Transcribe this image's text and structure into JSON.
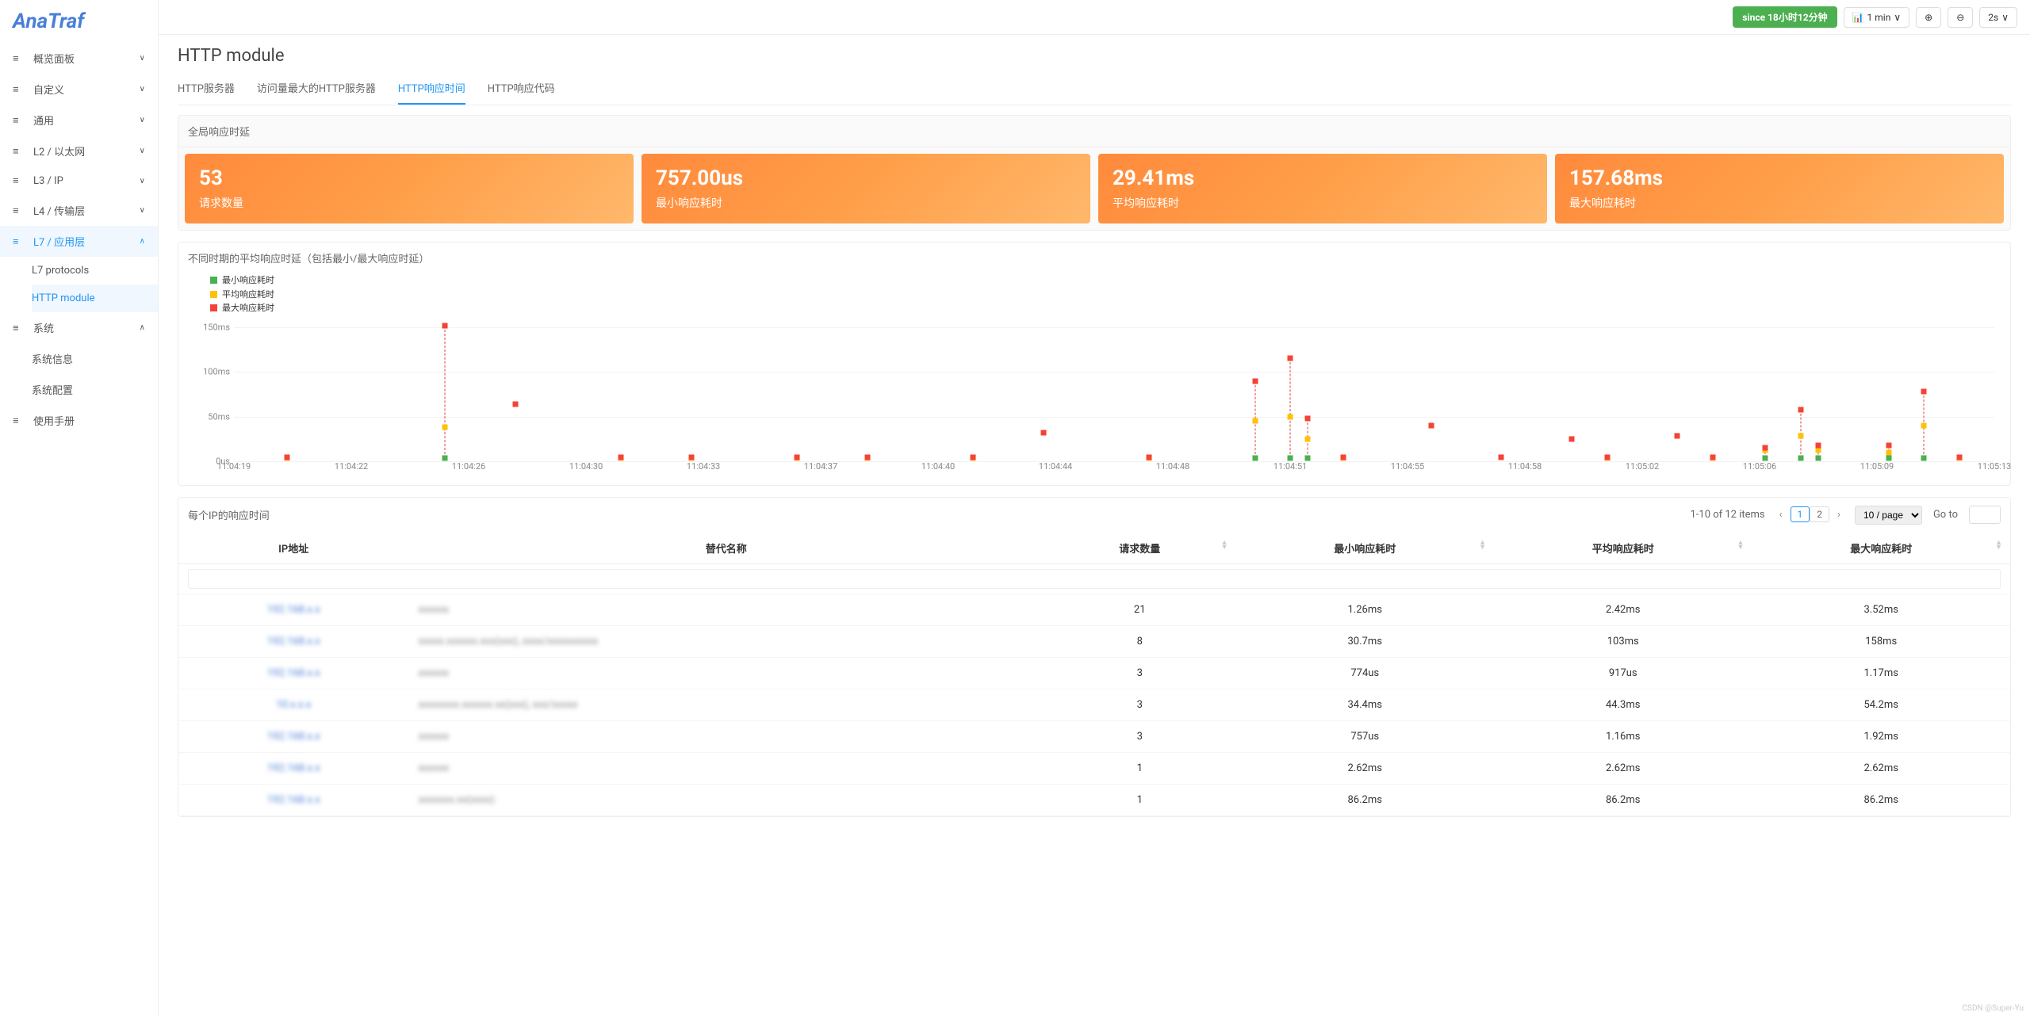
{
  "logo": "AnaTraf",
  "sidebar": {
    "items": [
      {
        "label": "概览面板",
        "chev": "∨"
      },
      {
        "label": "自定义",
        "chev": "∨"
      },
      {
        "label": "通用",
        "chev": "∨"
      },
      {
        "label": "L2 / 以太网",
        "chev": "∨"
      },
      {
        "label": "L3 / IP",
        "chev": "∨"
      },
      {
        "label": "L4 / 传输层",
        "chev": "∨"
      },
      {
        "label": "L7 / 应用层",
        "chev": "∧",
        "active": true
      },
      {
        "label": "系统",
        "chev": "∧"
      },
      {
        "label": "使用手册"
      }
    ],
    "l7_sub": [
      {
        "label": "L7 protocols"
      },
      {
        "label": "HTTP module",
        "active": true
      }
    ],
    "sys_sub": [
      {
        "label": "系统信息"
      },
      {
        "label": "系统配置"
      }
    ]
  },
  "topbar": {
    "since": "since 18小时12分钟",
    "interval": "1 min",
    "refresh": "2s"
  },
  "page_title": "HTTP module",
  "tabs": [
    {
      "label": "HTTP服务器"
    },
    {
      "label": "访问量最大的HTTP服务器"
    },
    {
      "label": "HTTP响应时间",
      "active": true
    },
    {
      "label": "HTTP响应代码"
    }
  ],
  "stats": {
    "title": "全局响应时延",
    "cards": [
      {
        "value": "53",
        "label": "请求数量"
      },
      {
        "value": "757.00us",
        "label": "最小响应耗时"
      },
      {
        "value": "29.41ms",
        "label": "平均响应耗时"
      },
      {
        "value": "157.68ms",
        "label": "最大响应耗时"
      }
    ],
    "card_gradient": [
      "#ff8a3c",
      "#ffb86b"
    ]
  },
  "chart": {
    "title": "不同时期的平均响应时延（包括最小/最大响应时延）",
    "legend": [
      {
        "color": "#4caf50",
        "label": "最小响应耗时"
      },
      {
        "color": "#ffc107",
        "label": "平均响应耗时"
      },
      {
        "color": "#f44336",
        "label": "最大响应耗时"
      }
    ],
    "y_ticks": [
      {
        "v": 0,
        "l": "0us"
      },
      {
        "v": 50,
        "l": "50ms"
      },
      {
        "v": 100,
        "l": "100ms"
      },
      {
        "v": 150,
        "l": "150ms"
      }
    ],
    "y_max": 160,
    "x_labels": [
      "11:04:19",
      "11:04:22",
      "11:04:26",
      "11:04:30",
      "11:04:33",
      "11:04:37",
      "11:04:40",
      "11:04:44",
      "11:04:48",
      "11:04:51",
      "11:04:55",
      "11:04:58",
      "11:05:02",
      "11:05:06",
      "11:05:09",
      "11:05:13"
    ],
    "points": [
      {
        "x": 3,
        "min": 3,
        "avg": 3,
        "max": 4
      },
      {
        "x": 12,
        "min": 3,
        "avg": 38,
        "max": 152
      },
      {
        "x": 16,
        "min": null,
        "avg": null,
        "max": 64
      },
      {
        "x": 22,
        "min": 3,
        "avg": 3,
        "max": 4
      },
      {
        "x": 26,
        "min": 3,
        "avg": 3,
        "max": 4
      },
      {
        "x": 32,
        "min": 3,
        "avg": 3,
        "max": 4
      },
      {
        "x": 36,
        "min": 3,
        "avg": 3,
        "max": 4
      },
      {
        "x": 42,
        "min": 3,
        "avg": 3,
        "max": 4
      },
      {
        "x": 46,
        "min": null,
        "avg": null,
        "max": 32
      },
      {
        "x": 52,
        "min": 3,
        "avg": 3,
        "max": 4
      },
      {
        "x": 58,
        "min": 3,
        "avg": 45,
        "max": 90
      },
      {
        "x": 60,
        "min": 3,
        "avg": 50,
        "max": 115
      },
      {
        "x": 61,
        "min": 3,
        "avg": 25,
        "max": 48
      },
      {
        "x": 63,
        "min": 3,
        "avg": 3,
        "max": 4
      },
      {
        "x": 68,
        "min": null,
        "avg": null,
        "max": 40
      },
      {
        "x": 72,
        "min": null,
        "avg": null,
        "max": 4
      },
      {
        "x": 76,
        "min": null,
        "avg": null,
        "max": 25
      },
      {
        "x": 78,
        "min": 3,
        "avg": 3,
        "max": 4
      },
      {
        "x": 82,
        "min": null,
        "avg": null,
        "max": 28
      },
      {
        "x": 84,
        "min": 3,
        "avg": 3,
        "max": 4
      },
      {
        "x": 87,
        "min": 3,
        "avg": 12,
        "max": 15
      },
      {
        "x": 89,
        "min": 3,
        "avg": 28,
        "max": 58
      },
      {
        "x": 90,
        "min": 3,
        "avg": 12,
        "max": 18
      },
      {
        "x": 94,
        "min": 3,
        "avg": 10,
        "max": 18
      },
      {
        "x": 96,
        "min": 3,
        "avg": 40,
        "max": 78
      },
      {
        "x": 98,
        "min": 3,
        "avg": 3,
        "max": 4
      }
    ]
  },
  "table": {
    "title": "每个IP的响应时间",
    "pagination": {
      "info": "1-10 of 12 items",
      "pages": [
        "1",
        "2"
      ],
      "per_page": "10 / page",
      "goto_label": "Go to"
    },
    "columns": [
      "IP地址",
      "替代名称",
      "请求数量",
      "最小响应耗时",
      "平均响应耗时",
      "最大响应耗时"
    ],
    "rows": [
      {
        "ip": "192.168.x.x",
        "alias": "xxxxxx",
        "req": "21",
        "min": "1.26ms",
        "avg": "2.42ms",
        "max": "3.52ms"
      },
      {
        "ip": "192.168.x.x",
        "alias": "xxxxx.xxxxxx.xxx(xxx), xxxx/xxxxxxxxxx",
        "req": "8",
        "min": "30.7ms",
        "avg": "103ms",
        "max": "158ms"
      },
      {
        "ip": "192.168.x.x",
        "alias": "xxxxxx",
        "req": "3",
        "min": "774us",
        "avg": "917us",
        "max": "1.17ms"
      },
      {
        "ip": "10.x.x.x",
        "alias": "xxxxxxxx.xxxxxx.xx(xxx), xxx/xxxxx",
        "req": "3",
        "min": "34.4ms",
        "avg": "44.3ms",
        "max": "54.2ms"
      },
      {
        "ip": "192.168.x.x",
        "alias": "xxxxxx",
        "req": "3",
        "min": "757us",
        "avg": "1.16ms",
        "max": "1.92ms"
      },
      {
        "ip": "192.168.x.x",
        "alias": "xxxxxx",
        "req": "1",
        "min": "2.62ms",
        "avg": "2.62ms",
        "max": "2.62ms"
      },
      {
        "ip": "192.168.x.x",
        "alias": "xxxxxxx.xx(xxxx)",
        "req": "1",
        "min": "86.2ms",
        "avg": "86.2ms",
        "max": "86.2ms"
      }
    ]
  },
  "watermark": "CSDN @Super-Yu"
}
